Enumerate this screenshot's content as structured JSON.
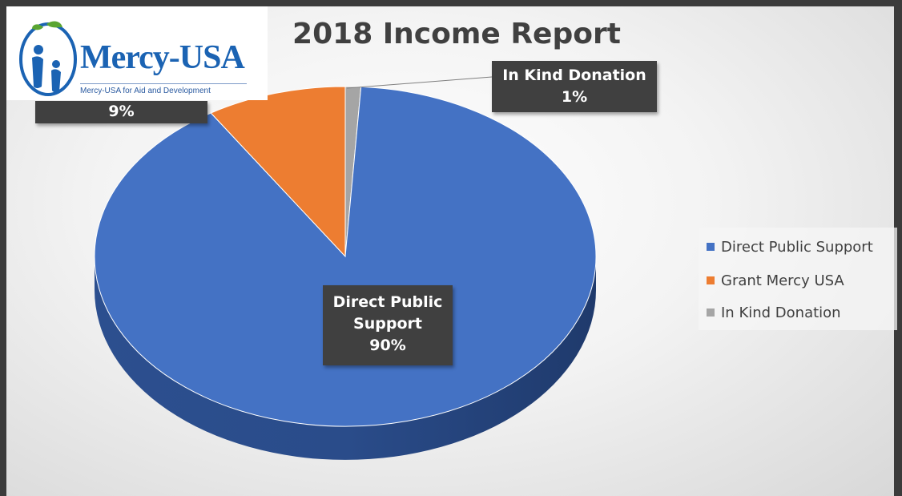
{
  "logo": {
    "name": "Mercy-USA",
    "tagline": "Mercy-USA for Aid and Development"
  },
  "chart_data": {
    "type": "pie",
    "title": "2018 Income Report",
    "style": "3d",
    "slices": [
      {
        "name": "Direct Public Support",
        "value": 90,
        "color": "#4472c4",
        "label_lines": [
          "Direct Public",
          "Support",
          "90%"
        ]
      },
      {
        "name": "Grant Mercy USA",
        "value": 9,
        "color": "#ed7d31",
        "label_lines": [
          "9%"
        ]
      },
      {
        "name": "In Kind Donation",
        "value": 1,
        "color": "#a5a5a5",
        "label_lines": [
          "In Kind Donation",
          "1%"
        ]
      }
    ],
    "legend": {
      "position": "right",
      "items": [
        "Direct Public Support",
        "Grant Mercy USA",
        "In Kind Donation"
      ]
    }
  }
}
